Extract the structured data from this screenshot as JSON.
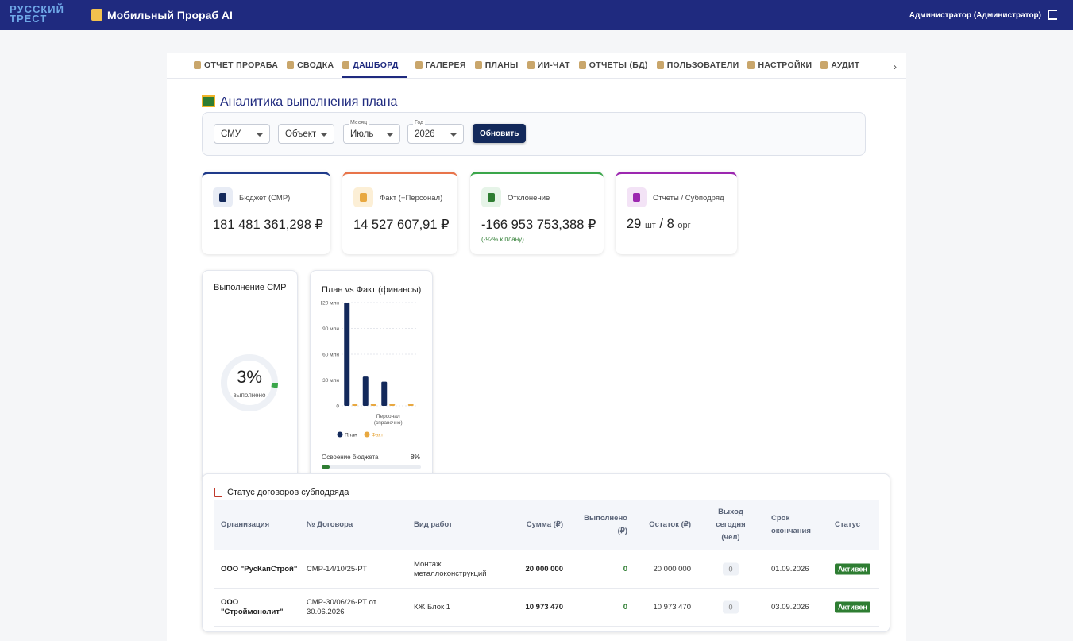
{
  "header": {
    "logo": "РУССКИЙ ТРЕСТ",
    "app_title": "Мобильный Прораб AI",
    "user": "Администратор (Администратор)"
  },
  "tabs": [
    "ОТЧЕТ ПРОРАБА",
    "СВОДКА",
    "ДАШБОРД",
    "ГАЛЕРЕЯ",
    "ПЛАНЫ",
    "ИИ-ЧАТ",
    "ОТЧЕТЫ (БД)",
    "ПОЛЬЗОВАТЕЛИ",
    "НАСТРОЙКИ",
    "АУДИТ"
  ],
  "page_title": "Аналитика выполнения плана",
  "filters": [
    {
      "value": "СМУ"
    },
    {
      "value": "Объект"
    },
    {
      "label": "Месяц",
      "value": "Июль"
    },
    {
      "label": "Год",
      "value": "2026"
    }
  ],
  "refresh_button": "Обновить",
  "kpis": [
    {
      "label": "Бюджет (СМР)",
      "value": "181 481 361,298 ₽"
    },
    {
      "label": "Факт (+Персонал)",
      "value": "14 527 607,91 ₽"
    },
    {
      "label": "Отклонение",
      "value": "-166 953 753,388 ₽",
      "note": "(-92% к плану)"
    },
    {
      "label": "Отчеты / Субподряд",
      "value": "29",
      "unit": "шт",
      "separator": "/",
      "value2": "8",
      "unit2": "орг"
    }
  ],
  "chart_data": [
    {
      "type": "gauge",
      "title": "Выполнение СМР",
      "values": [
        3
      ],
      "value_labels": [
        "3%"
      ],
      "caption": "выполнено",
      "color": "#3aa64a",
      "ylim": [
        0,
        100
      ]
    },
    {
      "type": "bar",
      "title": "План vs Факт (финансы)",
      "categories": [
        null,
        null,
        "Персонал (справочно)",
        null
      ],
      "series": [
        {
          "name": "План",
          "color": "#13295b",
          "values": [
            120,
            34,
            28,
            0
          ]
        },
        {
          "name": "Факт",
          "color": "#e8a840",
          "values": [
            2,
            2.5,
            2.5,
            2
          ]
        }
      ],
      "ylim": [
        0,
        120
      ],
      "yticks": [
        0,
        {
          "value": 30,
          "label": "30 млн"
        },
        {
          "value": 60,
          "label": "60 млн"
        },
        {
          "value": 90,
          "label": "90 млн"
        },
        {
          "value": 120,
          "label": "120 млн"
        }
      ],
      "grid": true,
      "progress": {
        "label": "Освоение бюджета",
        "value": 8,
        "value_label": "8%",
        "color": "#2e7d32"
      }
    }
  ],
  "table": {
    "title": "Статус договоров субподряда",
    "headers": [
      "Организация",
      "№ Договора",
      "Вид работ",
      "Сумма (₽)",
      "Выполнено (₽)",
      "Остаток (₽)",
      "Выход сегодня (чел)",
      "Срок окончания",
      "Статус"
    ],
    "rows": [
      [
        "ООО \"РусКапСтрой\"",
        "СМР-14/10/25-РТ",
        "Монтаж металлоконструкций",
        "20 000 000",
        "0",
        "20 000 000",
        "0",
        "01.09.2026",
        "Активен"
      ],
      [
        "ООО \"Строймонолит\"",
        "СМР-30/06/26-РТ от 30.06.2026",
        "КЖ Блок 1",
        "10 973 470",
        "0",
        "10 973 470",
        "0",
        "03.09.2026",
        "Активен"
      ]
    ]
  }
}
